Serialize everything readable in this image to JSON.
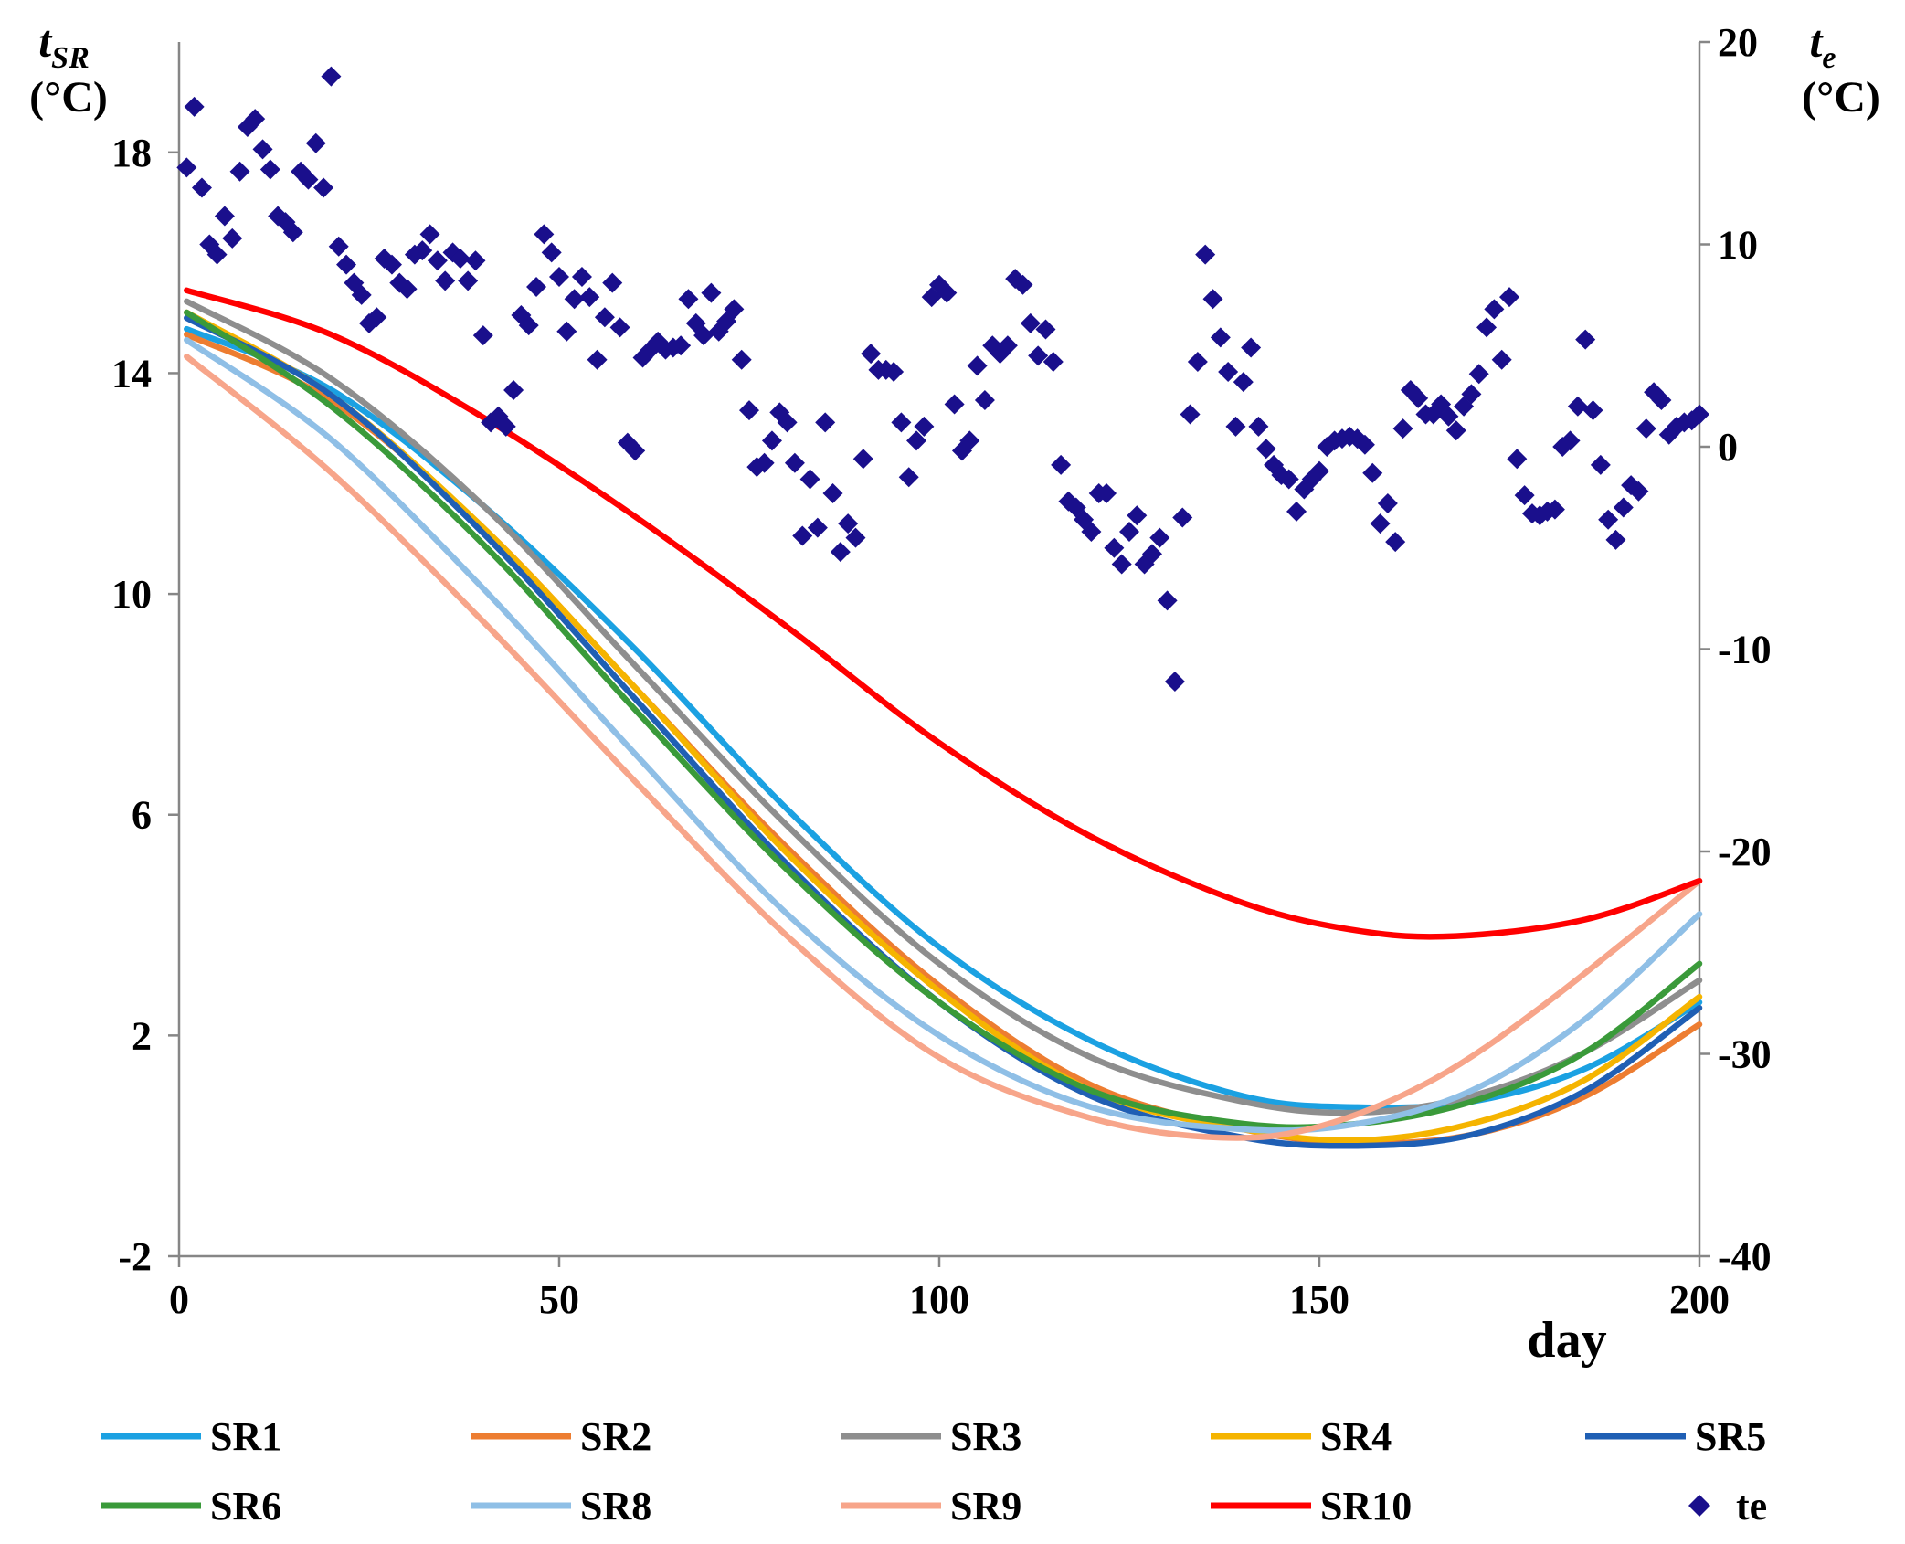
{
  "chart_data": {
    "type": "line",
    "title": "",
    "xlabel": "day",
    "ylabel_left": {
      "main": "t",
      "sub": "SR",
      "unit": "(°C)"
    },
    "ylabel_right": {
      "main": "t",
      "sub": "e",
      "unit": "(°C)"
    },
    "xlim": [
      0,
      200
    ],
    "ylim_left": [
      -2,
      20
    ],
    "ylim_right": [
      -40,
      20
    ],
    "x_ticks": [
      0,
      50,
      100,
      150,
      200
    ],
    "y_left_ticks": [
      -2,
      2,
      6,
      10,
      14,
      18
    ],
    "y_right_ticks": [
      -40,
      -30,
      -20,
      -10,
      0,
      10,
      20
    ],
    "grid": false,
    "legend_position": "bottom",
    "series": [
      {
        "name": "SR1",
        "color": "#1ba1e2",
        "axis": "left",
        "x": [
          1,
          20,
          40,
          60,
          80,
          100,
          120,
          140,
          155,
          170,
          185,
          200
        ],
        "y": [
          14.8,
          13.7,
          11.6,
          9.0,
          6.1,
          3.6,
          1.9,
          0.9,
          0.7,
          0.8,
          1.4,
          2.6
        ]
      },
      {
        "name": "SR2",
        "color": "#ed7d31",
        "axis": "left",
        "x": [
          1,
          20,
          40,
          60,
          80,
          100,
          120,
          140,
          155,
          170,
          185,
          200
        ],
        "y": [
          14.7,
          13.5,
          11.2,
          8.3,
          5.4,
          2.9,
          1.1,
          0.3,
          0.05,
          0.2,
          0.9,
          2.2
        ]
      },
      {
        "name": "SR3",
        "color": "#8e8e8e",
        "axis": "left",
        "x": [
          1,
          20,
          40,
          60,
          80,
          100,
          120,
          140,
          155,
          170,
          185,
          200
        ],
        "y": [
          15.3,
          13.9,
          11.6,
          8.7,
          5.8,
          3.3,
          1.6,
          0.8,
          0.6,
          0.9,
          1.7,
          3.0
        ]
      },
      {
        "name": "SR4",
        "color": "#f5b400",
        "axis": "left",
        "x": [
          1,
          20,
          40,
          60,
          80,
          100,
          120,
          140,
          155,
          170,
          185,
          200
        ],
        "y": [
          15.1,
          13.6,
          11.2,
          8.3,
          5.3,
          2.8,
          1.0,
          0.3,
          0.1,
          0.4,
          1.2,
          2.7
        ]
      },
      {
        "name": "SR5",
        "color": "#1f5fb4",
        "axis": "left",
        "x": [
          1,
          20,
          40,
          60,
          80,
          100,
          120,
          140,
          155,
          170,
          185,
          200
        ],
        "y": [
          15.0,
          13.6,
          11.1,
          8.1,
          5.1,
          2.6,
          0.9,
          0.15,
          0.0,
          0.2,
          1.0,
          2.5
        ]
      },
      {
        "name": "SR6",
        "color": "#3a9a3a",
        "axis": "left",
        "x": [
          1,
          20,
          40,
          60,
          80,
          100,
          120,
          140,
          155,
          170,
          185,
          200
        ],
        "y": [
          15.1,
          13.4,
          10.9,
          7.9,
          5.0,
          2.6,
          1.0,
          0.4,
          0.4,
          0.8,
          1.7,
          3.3
        ]
      },
      {
        "name": "SR8",
        "color": "#8fbfe6",
        "axis": "left",
        "x": [
          1,
          20,
          40,
          60,
          80,
          100,
          120,
          140,
          155,
          170,
          185,
          200
        ],
        "y": [
          14.6,
          12.8,
          10.1,
          7.1,
          4.2,
          2.0,
          0.7,
          0.3,
          0.4,
          1.0,
          2.3,
          4.2
        ]
      },
      {
        "name": "SR9",
        "color": "#f7a58a",
        "axis": "left",
        "x": [
          1,
          20,
          40,
          60,
          80,
          100,
          120,
          137,
          150,
          165,
          180,
          200
        ],
        "y": [
          14.3,
          12.2,
          9.5,
          6.6,
          3.8,
          1.6,
          0.5,
          0.15,
          0.35,
          1.2,
          2.6,
          4.8
        ]
      },
      {
        "name": "SR10",
        "color": "#ff0000",
        "axis": "left",
        "x": [
          1,
          20,
          40,
          60,
          80,
          100,
          120,
          140,
          155,
          168,
          185,
          200
        ],
        "y": [
          15.5,
          14.7,
          13.2,
          11.4,
          9.4,
          7.3,
          5.6,
          4.4,
          3.9,
          3.8,
          4.1,
          4.8
        ]
      },
      {
        "name": "te",
        "color": "#1a0f8c",
        "axis": "right",
        "marker": "diamond",
        "x": [
          1,
          2,
          3,
          4,
          5,
          6,
          7,
          8,
          9,
          10,
          11,
          12,
          13,
          14,
          15,
          16,
          17,
          18,
          19,
          20,
          21,
          22,
          23,
          24,
          25,
          26,
          27,
          28,
          29,
          30,
          31,
          32,
          33,
          34,
          35,
          36,
          37,
          38,
          39,
          40,
          41,
          42,
          43,
          44,
          45,
          46,
          47,
          48,
          49,
          50,
          51,
          52,
          53,
          54,
          55,
          56,
          57,
          58,
          59,
          60,
          61,
          62,
          63,
          64,
          65,
          66,
          67,
          68,
          69,
          70,
          71,
          72,
          73,
          74,
          75,
          76,
          77,
          78,
          79,
          80,
          81,
          82,
          83,
          84,
          85,
          86,
          87,
          88,
          89,
          90,
          91,
          92,
          93,
          94,
          95,
          96,
          97,
          98,
          99,
          100,
          101,
          102,
          103,
          104,
          105,
          106,
          107,
          108,
          109,
          110,
          111,
          112,
          113,
          114,
          115,
          116,
          117,
          118,
          119,
          120,
          121,
          122,
          123,
          124,
          125,
          126,
          127,
          128,
          129,
          130,
          131,
          132,
          133,
          134,
          135,
          136,
          137,
          138,
          139,
          140,
          141,
          142,
          143,
          144,
          145,
          146,
          147,
          148,
          149,
          150,
          151,
          152,
          153,
          154,
          155,
          156,
          157,
          158,
          159,
          160,
          161,
          162,
          163,
          164,
          165,
          166,
          167,
          168,
          169,
          170,
          171,
          172,
          173,
          174,
          175,
          176,
          177,
          178,
          179,
          180,
          181,
          182,
          183,
          184,
          185,
          186,
          187,
          188,
          189,
          190,
          191,
          192,
          193,
          194,
          195,
          196,
          197,
          198,
          199,
          200
        ],
        "y": [
          13.8,
          16.8,
          12.8,
          10.0,
          9.5,
          11.4,
          10.3,
          13.6,
          15.8,
          16.2,
          14.7,
          13.7,
          11.4,
          11.1,
          10.6,
          13.6,
          13.2,
          15.0,
          12.8,
          18.3,
          9.9,
          9.0,
          8.1,
          7.5,
          6.1,
          6.4,
          9.3,
          9.0,
          8.1,
          7.8,
          9.5,
          9.7,
          10.5,
          9.2,
          8.2,
          9.6,
          9.3,
          8.2,
          9.2,
          5.5,
          1.2,
          1.5,
          1.0,
          2.8,
          6.5,
          6.0,
          7.9,
          10.5,
          9.6,
          8.4,
          5.7,
          7.3,
          8.4,
          7.4,
          4.3,
          6.4,
          8.1,
          5.9,
          0.2,
          -0.2,
          4.4,
          4.8,
          5.2,
          4.8,
          4.9,
          5.0,
          7.3,
          6.1,
          5.5,
          7.6,
          5.7,
          6.2,
          6.8,
          4.3,
          1.8,
          -1.0,
          -0.8,
          0.3,
          1.7,
          1.2,
          -0.8,
          -4.4,
          -1.6,
          -4.0,
          1.2,
          -2.3,
          -5.2,
          -3.8,
          -4.5,
          -0.6,
          4.6,
          3.8,
          3.8,
          3.7,
          1.2,
          -1.5,
          0.3,
          1.0,
          7.4,
          8.0,
          7.6,
          2.1,
          -0.2,
          0.3,
          4.0,
          2.3,
          5.0,
          4.6,
          5.0,
          8.3,
          8.0,
          6.1,
          4.5,
          5.8,
          4.2,
          -0.9,
          -2.7,
          -3.0,
          -3.6,
          -4.2,
          -2.3,
          -2.3,
          -5.0,
          -5.8,
          -4.2,
          -3.4,
          -5.8,
          -5.3,
          -4.5,
          -7.6,
          -11.6,
          -3.5,
          1.6,
          4.2,
          9.5,
          7.3,
          5.4,
          3.7,
          1.0,
          3.2,
          4.9,
          1.0,
          -0.1,
          -0.9,
          -1.4,
          -1.6,
          -3.2,
          -2.1,
          -1.6,
          -1.2,
          0.0,
          0.3,
          0.4,
          0.5,
          0.4,
          0.1,
          -1.3,
          -3.8,
          -2.8,
          -4.7,
          0.9,
          2.8,
          2.4,
          1.6,
          1.6,
          2.1,
          1.5,
          0.8,
          2.0,
          2.6,
          3.6,
          5.9,
          6.8,
          4.3,
          7.4,
          -0.6,
          -2.4,
          -3.3,
          -3.4,
          -3.2,
          -3.1,
          0.0,
          0.3,
          2.0,
          5.3,
          1.8,
          -0.9,
          -3.6,
          -4.6,
          -3.0,
          -1.9,
          -2.2,
          0.9,
          2.7,
          2.3,
          0.6,
          1.0,
          1.2,
          1.3,
          1.6
        ]
      }
    ],
    "legend": [
      {
        "label": "SR1",
        "color": "#1ba1e2",
        "type": "line"
      },
      {
        "label": "SR2",
        "color": "#ed7d31",
        "type": "line"
      },
      {
        "label": "SR3",
        "color": "#8e8e8e",
        "type": "line"
      },
      {
        "label": "SR4",
        "color": "#f5b400",
        "type": "line"
      },
      {
        "label": "SR5",
        "color": "#1f5fb4",
        "type": "line"
      },
      {
        "label": "SR6",
        "color": "#3a9a3a",
        "type": "line"
      },
      {
        "label": "SR8",
        "color": "#8fbfe6",
        "type": "line"
      },
      {
        "label": "SR9",
        "color": "#f7a58a",
        "type": "line"
      },
      {
        "label": "SR10",
        "color": "#ff0000",
        "type": "line"
      },
      {
        "label": "te",
        "color": "#1a0f8c",
        "type": "diamond"
      }
    ]
  }
}
